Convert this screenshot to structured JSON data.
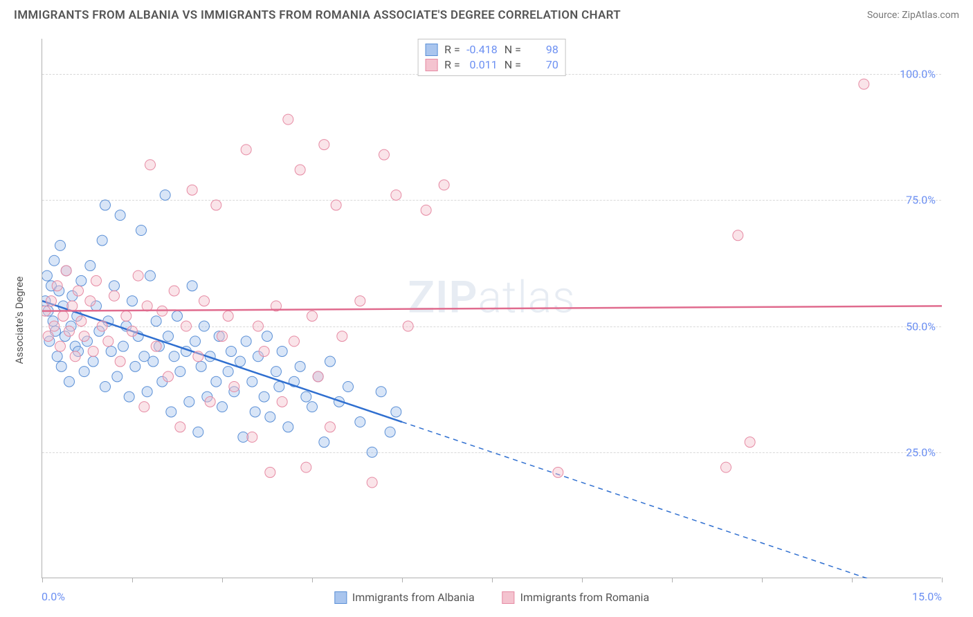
{
  "title": "IMMIGRANTS FROM ALBANIA VS IMMIGRANTS FROM ROMANIA ASSOCIATE'S DEGREE CORRELATION CHART",
  "source_label": "Source: ZipAtlas.com",
  "watermark_a": "ZIP",
  "watermark_b": "atlas",
  "chart": {
    "type": "scatter",
    "y_axis_title": "Associate's Degree",
    "xlim": [
      0,
      15
    ],
    "ylim": [
      0,
      107
    ],
    "x_ticks": [
      0,
      1.5,
      3.0,
      4.5,
      6.0,
      7.5,
      9.0,
      10.5,
      12.0,
      13.5,
      15.0
    ],
    "x_tick_labels": {
      "0": "0.0%",
      "15": "15.0%"
    },
    "y_gridlines": [
      25,
      50,
      75,
      100
    ],
    "y_tick_labels": {
      "25": "25.0%",
      "50": "50.0%",
      "75": "75.0%",
      "100": "100.0%"
    },
    "background_color": "#ffffff",
    "grid_color": "#d8d8d8",
    "axis_color": "#b0b0b0",
    "tick_label_color": "#6b8ff2",
    "marker_radius": 7.5,
    "marker_opacity": 0.45,
    "line_width_solid": 2.5,
    "line_width_dash": 1.5,
    "series": [
      {
        "name": "Immigrants from Albania",
        "color_fill": "#a9c5ee",
        "color_stroke": "#5a8fd6",
        "line_color": "#2f6fd0",
        "R": "-0.418",
        "N": "98",
        "trend": {
          "y_at_x0": 55,
          "y_at_x15": -5,
          "x_solid_end": 6.0
        },
        "points": [
          [
            0.05,
            55
          ],
          [
            0.08,
            60
          ],
          [
            0.1,
            53
          ],
          [
            0.12,
            47
          ],
          [
            0.15,
            58
          ],
          [
            0.18,
            51
          ],
          [
            0.2,
            63
          ],
          [
            0.22,
            49
          ],
          [
            0.25,
            44
          ],
          [
            0.28,
            57
          ],
          [
            0.3,
            66
          ],
          [
            0.32,
            42
          ],
          [
            0.35,
            54
          ],
          [
            0.38,
            48
          ],
          [
            0.4,
            61
          ],
          [
            0.45,
            39
          ],
          [
            0.48,
            50
          ],
          [
            0.5,
            56
          ],
          [
            0.55,
            46
          ],
          [
            0.58,
            52
          ],
          [
            0.6,
            45
          ],
          [
            0.65,
            59
          ],
          [
            0.7,
            41
          ],
          [
            0.75,
            47
          ],
          [
            0.8,
            62
          ],
          [
            0.85,
            43
          ],
          [
            0.9,
            54
          ],
          [
            0.95,
            49
          ],
          [
            1.0,
            67
          ],
          [
            1.05,
            38
          ],
          [
            1.1,
            51
          ],
          [
            1.15,
            45
          ],
          [
            1.2,
            58
          ],
          [
            1.25,
            40
          ],
          [
            1.3,
            72
          ],
          [
            1.35,
            46
          ],
          [
            1.4,
            50
          ],
          [
            1.45,
            36
          ],
          [
            1.5,
            55
          ],
          [
            1.55,
            42
          ],
          [
            1.6,
            48
          ],
          [
            1.65,
            69
          ],
          [
            1.7,
            44
          ],
          [
            1.75,
            37
          ],
          [
            1.8,
            60
          ],
          [
            1.85,
            43
          ],
          [
            1.9,
            51
          ],
          [
            1.95,
            46
          ],
          [
            2.0,
            39
          ],
          [
            2.05,
            76
          ],
          [
            2.1,
            48
          ],
          [
            2.15,
            33
          ],
          [
            2.2,
            44
          ],
          [
            2.25,
            52
          ],
          [
            2.3,
            41
          ],
          [
            2.4,
            45
          ],
          [
            2.45,
            35
          ],
          [
            2.5,
            58
          ],
          [
            2.55,
            47
          ],
          [
            2.6,
            29
          ],
          [
            2.65,
            42
          ],
          [
            2.7,
            50
          ],
          [
            2.75,
            36
          ],
          [
            2.8,
            44
          ],
          [
            2.9,
            39
          ],
          [
            2.95,
            48
          ],
          [
            3.0,
            34
          ],
          [
            3.1,
            41
          ],
          [
            3.15,
            45
          ],
          [
            3.2,
            37
          ],
          [
            3.3,
            43
          ],
          [
            3.35,
            28
          ],
          [
            3.4,
            47
          ],
          [
            3.5,
            39
          ],
          [
            3.55,
            33
          ],
          [
            3.6,
            44
          ],
          [
            3.7,
            36
          ],
          [
            3.75,
            48
          ],
          [
            3.8,
            32
          ],
          [
            3.9,
            41
          ],
          [
            3.95,
            38
          ],
          [
            4.0,
            45
          ],
          [
            4.1,
            30
          ],
          [
            4.2,
            39
          ],
          [
            4.3,
            42
          ],
          [
            4.4,
            36
          ],
          [
            4.5,
            34
          ],
          [
            4.6,
            40
          ],
          [
            4.7,
            27
          ],
          [
            4.8,
            43
          ],
          [
            4.95,
            35
          ],
          [
            5.1,
            38
          ],
          [
            5.3,
            31
          ],
          [
            5.5,
            25
          ],
          [
            5.65,
            37
          ],
          [
            5.8,
            29
          ],
          [
            5.9,
            33
          ],
          [
            1.05,
            74
          ]
        ]
      },
      {
        "name": "Immigrants from Romania",
        "color_fill": "#f4c3cf",
        "color_stroke": "#e68aa3",
        "line_color": "#e06b8e",
        "R": "0.011",
        "N": "70",
        "trend": {
          "y_at_x0": 53,
          "y_at_x15": 54,
          "x_solid_end": 15
        },
        "points": [
          [
            0.05,
            53
          ],
          [
            0.1,
            48
          ],
          [
            0.15,
            55
          ],
          [
            0.2,
            50
          ],
          [
            0.25,
            58
          ],
          [
            0.3,
            46
          ],
          [
            0.35,
            52
          ],
          [
            0.4,
            61
          ],
          [
            0.45,
            49
          ],
          [
            0.5,
            54
          ],
          [
            0.55,
            44
          ],
          [
            0.6,
            57
          ],
          [
            0.65,
            51
          ],
          [
            0.7,
            48
          ],
          [
            0.8,
            55
          ],
          [
            0.85,
            45
          ],
          [
            0.9,
            59
          ],
          [
            1.0,
            50
          ],
          [
            1.1,
            47
          ],
          [
            1.2,
            56
          ],
          [
            1.3,
            43
          ],
          [
            1.4,
            52
          ],
          [
            1.5,
            49
          ],
          [
            1.6,
            60
          ],
          [
            1.7,
            34
          ],
          [
            1.75,
            54
          ],
          [
            1.8,
            82
          ],
          [
            1.9,
            46
          ],
          [
            2.0,
            53
          ],
          [
            2.1,
            40
          ],
          [
            2.2,
            57
          ],
          [
            2.3,
            30
          ],
          [
            2.4,
            50
          ],
          [
            2.5,
            77
          ],
          [
            2.6,
            44
          ],
          [
            2.7,
            55
          ],
          [
            2.8,
            35
          ],
          [
            2.9,
            74
          ],
          [
            3.0,
            48
          ],
          [
            3.1,
            52
          ],
          [
            3.2,
            38
          ],
          [
            3.4,
            85
          ],
          [
            3.5,
            28
          ],
          [
            3.6,
            50
          ],
          [
            3.7,
            45
          ],
          [
            3.8,
            21
          ],
          [
            3.9,
            54
          ],
          [
            4.0,
            35
          ],
          [
            4.1,
            91
          ],
          [
            4.2,
            47
          ],
          [
            4.3,
            81
          ],
          [
            4.4,
            22
          ],
          [
            4.5,
            52
          ],
          [
            4.6,
            40
          ],
          [
            4.7,
            86
          ],
          [
            4.8,
            30
          ],
          [
            4.9,
            74
          ],
          [
            5.0,
            48
          ],
          [
            5.3,
            55
          ],
          [
            5.5,
            19
          ],
          [
            5.7,
            84
          ],
          [
            5.9,
            76
          ],
          [
            6.1,
            50
          ],
          [
            6.4,
            73
          ],
          [
            6.7,
            78
          ],
          [
            8.6,
            21
          ],
          [
            11.4,
            22
          ],
          [
            11.6,
            68
          ],
          [
            11.8,
            27
          ],
          [
            13.7,
            98
          ]
        ]
      }
    ]
  },
  "legend_top_label_R": "R =",
  "legend_top_label_N": "N ="
}
